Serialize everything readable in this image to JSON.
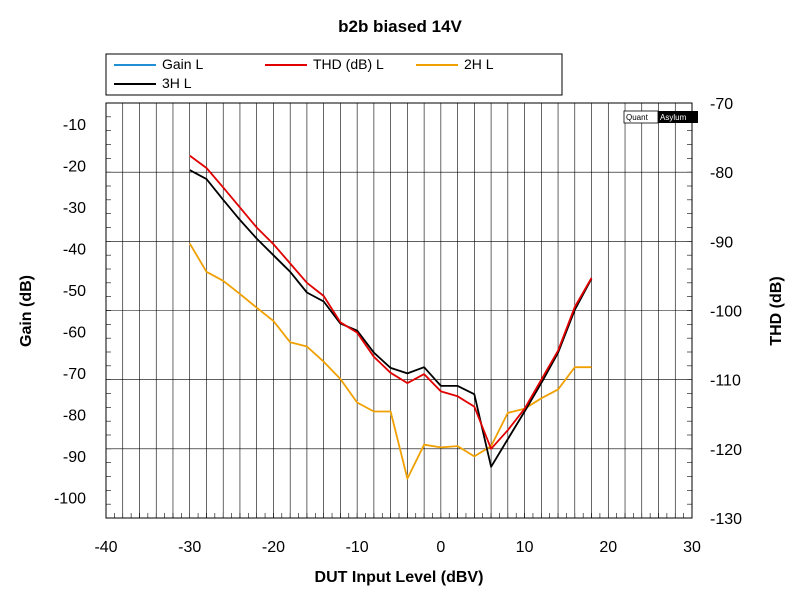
{
  "chart_data": {
    "type": "line",
    "title": "b2b biased 14V",
    "xlabel": "DUT Input Level (dBV)",
    "ylabel_left": "Gain (dB)",
    "ylabel_right": "THD (dB)",
    "xlim": [
      -40,
      30
    ],
    "ylim_left": [
      -105,
      -5
    ],
    "ylim_right": [
      -130,
      -70
    ],
    "x_ticks": [
      -40,
      -30,
      -20,
      -10,
      0,
      10,
      20,
      30
    ],
    "x_tick_labels": [
      "-40",
      "-30",
      "-20",
      "-10",
      "0",
      "10",
      "20",
      "30"
    ],
    "y_left_ticks": [
      -10,
      -20,
      -30,
      -40,
      -50,
      -60,
      -70,
      -80,
      -90,
      -100
    ],
    "y_left_tick_labels": [
      "-10",
      "-20",
      "-30",
      "-40",
      "-50",
      "-60",
      "-70",
      "-80",
      "-90",
      "-100"
    ],
    "y_right_ticks": [
      -70,
      -80,
      -90,
      -100,
      -110,
      -120,
      -130
    ],
    "y_right_tick_labels": [
      "-70",
      "-80",
      "-90",
      "-100",
      "-110",
      "-120",
      "-130"
    ],
    "grid": true,
    "legend_position": "top",
    "watermark": {
      "part1": "Quant",
      "part2": "Asylum"
    },
    "series": [
      {
        "name": "Gain L",
        "axis": "left",
        "color": "#1f8fd6",
        "x": [],
        "y": []
      },
      {
        "name": "THD (dB) L",
        "axis": "right",
        "color": "#e00000",
        "x": [
          -30,
          -28,
          -26,
          -24,
          -22,
          -20,
          -18,
          -16,
          -14,
          -12,
          -10,
          -8,
          -6,
          -4,
          -2,
          0,
          2,
          4,
          6,
          8,
          10,
          12,
          14,
          16,
          18
        ],
        "y": [
          -77.6,
          -79.4,
          -82.2,
          -85.1,
          -88.0,
          -90.4,
          -93.2,
          -96.0,
          -97.9,
          -101.7,
          -103.2,
          -106.7,
          -109.0,
          -110.5,
          -109.2,
          -111.7,
          -112.4,
          -113.9,
          -120.0,
          -117.3,
          -114.2,
          -110.0,
          -105.8,
          -99.5,
          -95.3
        ]
      },
      {
        "name": "3H L",
        "axis": "right",
        "color": "#000000",
        "x": [
          -30,
          -28,
          -26,
          -24,
          -22,
          -20,
          -18,
          -16,
          -14,
          -12,
          -10,
          -8,
          -6,
          -4,
          -2,
          0,
          2,
          4,
          6,
          8,
          10,
          12,
          14,
          16,
          18
        ],
        "y": [
          -79.7,
          -81.0,
          -84.0,
          -86.9,
          -89.6,
          -92.0,
          -94.4,
          -97.4,
          -98.7,
          -101.9,
          -102.9,
          -106.1,
          -108.3,
          -109.1,
          -108.2,
          -110.9,
          -110.9,
          -112.1,
          -122.6,
          -118.6,
          -114.6,
          -110.5,
          -106.1,
          -99.9,
          -95.4
        ]
      },
      {
        "name": "2H L",
        "axis": "right",
        "color": "#f0a000",
        "x": [
          -30,
          -28,
          -26,
          -24,
          -22,
          -20,
          -18,
          -16,
          -14,
          -12,
          -10,
          -8,
          -6,
          -4,
          -2,
          0,
          2,
          4,
          6,
          8,
          10,
          12,
          14,
          16,
          18
        ],
        "y": [
          -90.3,
          -94.4,
          -95.7,
          -97.6,
          -99.6,
          -101.5,
          -104.6,
          -105.2,
          -107.4,
          -109.9,
          -113.3,
          -114.6,
          -114.6,
          -124.3,
          -119.4,
          -119.8,
          -119.6,
          -121.1,
          -119.6,
          -114.8,
          -114.2,
          -112.7,
          -111.4,
          -108.2,
          -108.2
        ]
      }
    ]
  }
}
